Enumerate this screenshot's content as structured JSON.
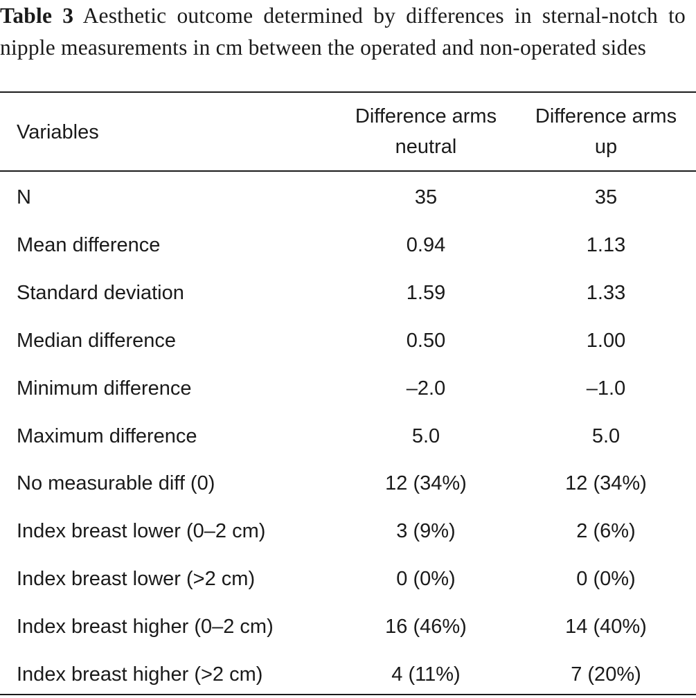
{
  "caption": {
    "label": "Table 3",
    "text": "Aesthetic outcome determined by differences in sternal-notch to nipple measurements in cm between the operated and non-operated sides"
  },
  "table": {
    "headers": {
      "variables": "Variables",
      "col1_line1": "Difference arms",
      "col1_line2": "neutral",
      "col2_line1": "Difference arms",
      "col2_line2": "up"
    },
    "rows": [
      {
        "variable": "N",
        "neutral": "35",
        "up": "35"
      },
      {
        "variable": "Mean difference",
        "neutral": "0.94",
        "up": "1.13"
      },
      {
        "variable": "Standard deviation",
        "neutral": "1.59",
        "up": "1.33"
      },
      {
        "variable": "Median difference",
        "neutral": "0.50",
        "up": "1.00"
      },
      {
        "variable": "Minimum difference",
        "neutral": "–2.0",
        "up": "–1.0"
      },
      {
        "variable": "Maximum difference",
        "neutral": "5.0",
        "up": "5.0"
      },
      {
        "variable": "No measurable diff (0)",
        "neutral": "12 (34%)",
        "up": "12 (34%)"
      },
      {
        "variable": "Index breast lower (0–2 cm)",
        "neutral": "3 (9%)",
        "up": "2 (6%)"
      },
      {
        "variable": "Index breast lower (>2 cm)",
        "neutral": "0 (0%)",
        "up": "0 (0%)"
      },
      {
        "variable": "Index breast higher (0–2 cm)",
        "neutral": "16 (46%)",
        "up": "14 (40%)"
      },
      {
        "variable": "Index breast higher (>2 cm)",
        "neutral": "4 (11%)",
        "up": "7 (20%)"
      }
    ]
  }
}
